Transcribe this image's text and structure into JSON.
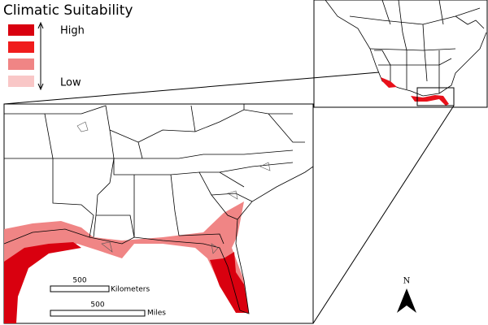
{
  "legend": {
    "title": "Climatic Suitability",
    "high": "High",
    "low": "Low",
    "colors": [
      "#d9000f",
      "#f01c1c",
      "#f08585",
      "#f9c7c7"
    ]
  },
  "scale_bars": [
    {
      "value": 500,
      "unit": "Kilometers"
    },
    {
      "value": 500,
      "unit": "Miles"
    }
  ],
  "north_arrow": "N"
}
